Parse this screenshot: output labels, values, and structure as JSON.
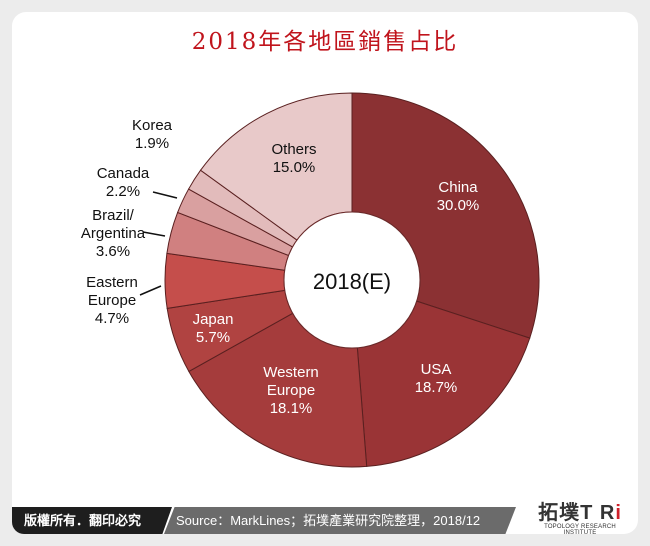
{
  "title": "2018年各地區銷售占比",
  "footer": {
    "copyright": "版權所有．翻印必究",
    "source": "Source：MarkLines；拓墣產業研究院整理，2018/12"
  },
  "logo": {
    "text": "拓墣TRi",
    "subtitle": "TOPOLOGY RESEARCH INSTITUTE"
  },
  "chart_data": {
    "type": "pie",
    "variant": "donut",
    "center_label": "2018(E)",
    "start": "top, clockwise",
    "slices": [
      {
        "label": "China",
        "value": 30.0,
        "value_label": "30.0%",
        "color": "#8b3133"
      },
      {
        "label": "USA",
        "value": 18.7,
        "value_label": "18.7%",
        "color": "#9a3436"
      },
      {
        "label": "Western Europe",
        "value": 18.1,
        "value_label": "18.1%",
        "color": "#a53c3c"
      },
      {
        "label": "Japan",
        "value": 5.7,
        "value_label": "5.7%",
        "color": "#b04341"
      },
      {
        "label": "Eastern Europe",
        "value": 4.7,
        "value_label": "4.7%",
        "color": "#c54e4b"
      },
      {
        "label": "Brazil/ Argentina",
        "value": 3.6,
        "value_label": "3.6%",
        "color": "#d08080"
      },
      {
        "label": "Canada",
        "value": 2.2,
        "value_label": "2.2%",
        "color": "#d9a0a0"
      },
      {
        "label": "Korea",
        "value": 1.9,
        "value_label": "1.9%",
        "color": "#e2bbbb"
      },
      {
        "label": "Others",
        "value": 15.0,
        "value_label": "15.0%",
        "color": "#e8c9c9"
      }
    ]
  }
}
